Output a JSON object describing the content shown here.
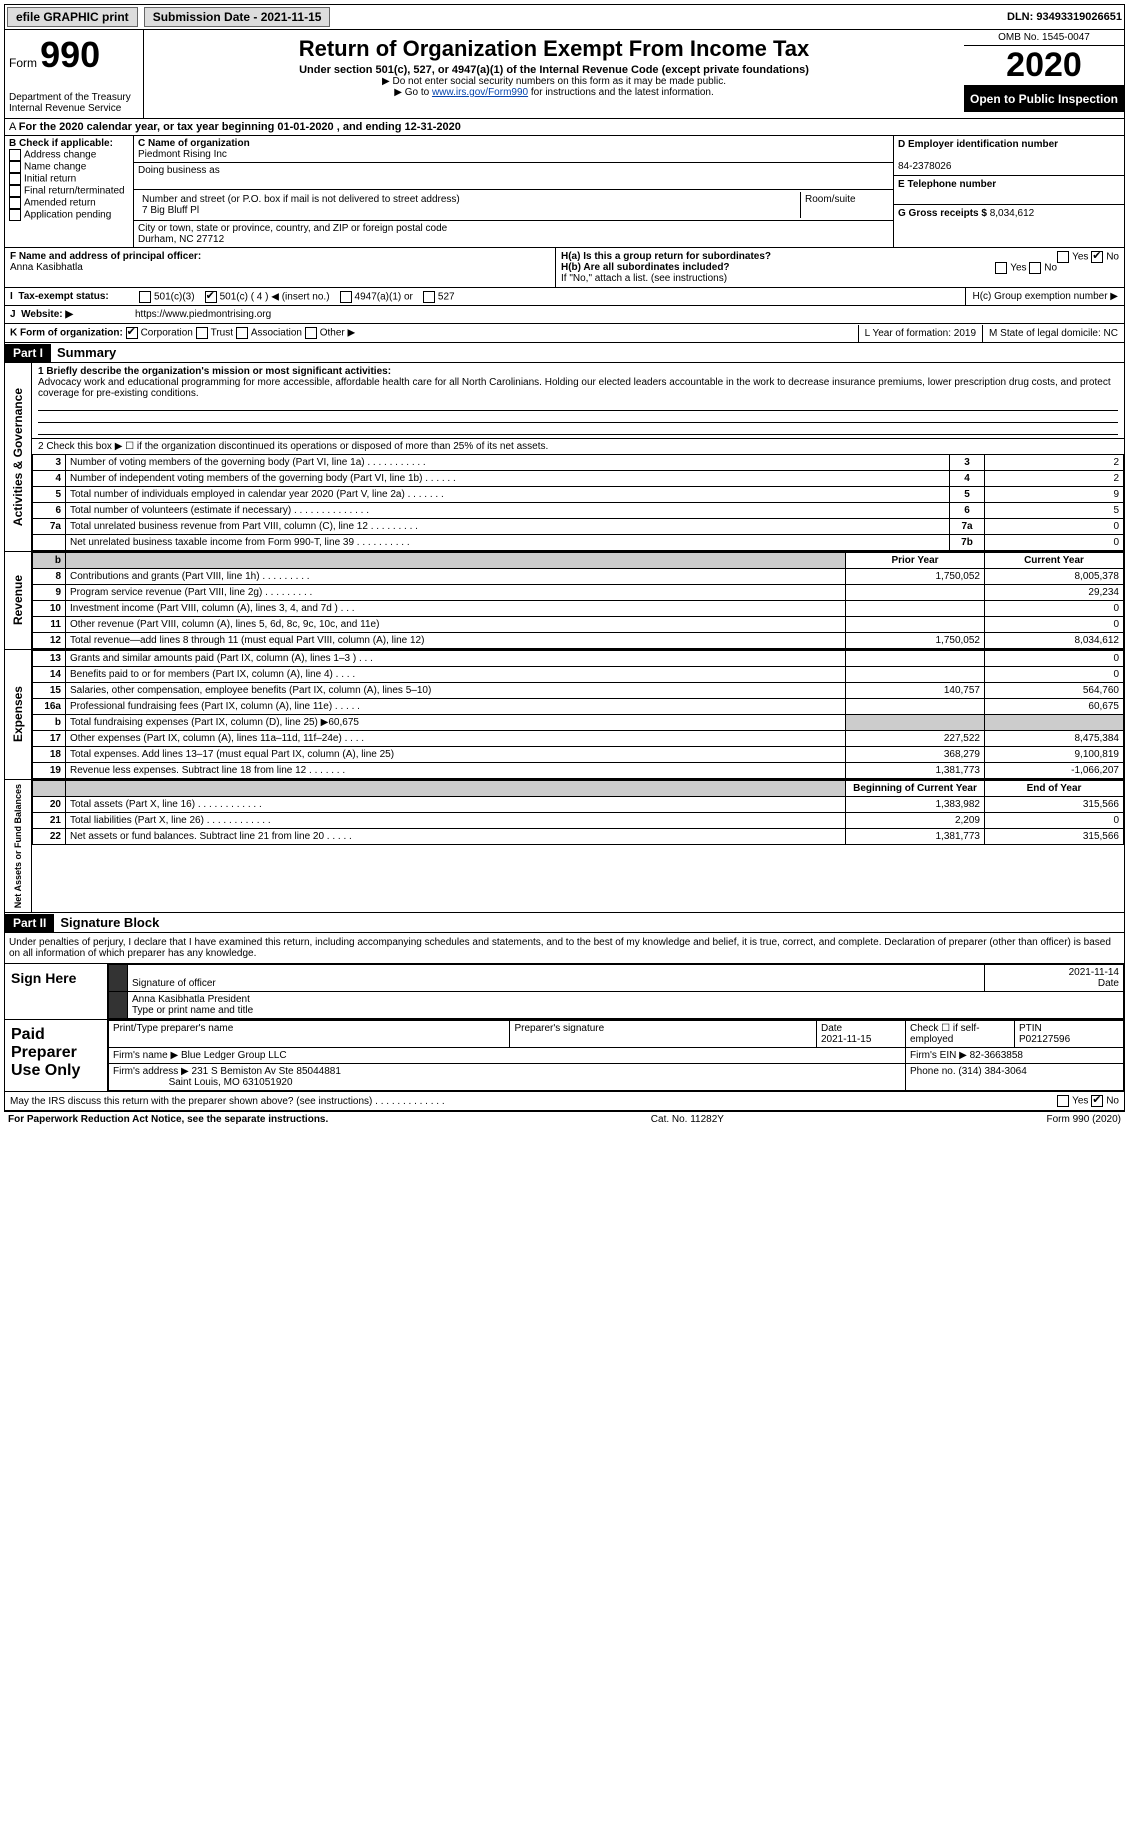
{
  "topbar": {
    "efile": "efile GRAPHIC print",
    "subdate_label": "Submission Date - 2021-11-15",
    "dln_label": "DLN: 93493319026651"
  },
  "header": {
    "form_word": "Form",
    "form_num": "990",
    "dept": "Department of the Treasury Internal Revenue Service",
    "title": "Return of Organization Exempt From Income Tax",
    "sub": "Under section 501(c), 527, or 4947(a)(1) of the Internal Revenue Code (except private foundations)",
    "ssn": "▶ Do not enter social security numbers on this form as it may be made public.",
    "goto_pre": "▶ Go to ",
    "goto_link": "www.irs.gov/Form990",
    "goto_post": " for instructions and the latest information.",
    "omb": "OMB No. 1545-0047",
    "year": "2020",
    "pubinsp": "Open to Public Inspection"
  },
  "A": "For the 2020 calendar year, or tax year beginning 01-01-2020 , and ending 12-31-2020",
  "B": {
    "title": "B Check if applicable:",
    "addr": "Address change",
    "name": "Name change",
    "init": "Initial return",
    "final": "Final return/terminated",
    "amend": "Amended return",
    "app": "Application pending"
  },
  "C": {
    "label": "C Name of organization",
    "org": "Piedmont Rising Inc",
    "dba": "Doing business as",
    "street_label": "Number and street (or P.O. box if mail is not delivered to street address)",
    "street": "7 Big Bluff Pl",
    "room": "Room/suite",
    "city_label": "City or town, state or province, country, and ZIP or foreign postal code",
    "city": "Durham, NC  27712"
  },
  "D": {
    "label": "D Employer identification number",
    "val": "84-2378026"
  },
  "E": {
    "label": "E Telephone number",
    "val": ""
  },
  "G_label": "G Gross receipts $",
  "G_val": "8,034,612",
  "F": {
    "label": "F  Name and address of principal officer:",
    "name": "Anna Kasibhatla"
  },
  "H": {
    "a": "H(a)  Is this a group return for subordinates?",
    "b": "H(b)  Are all subordinates included?",
    "b2": "If \"No,\" attach a list. (see instructions)",
    "c": "H(c)  Group exemption number ▶",
    "yes": "Yes",
    "no": "No"
  },
  "I": {
    "label": "Tax-exempt status:",
    "o1": "501(c)(3)",
    "o2": "501(c) ( 4 ) ◀ (insert no.)",
    "o3": "4947(a)(1) or",
    "o4": "527"
  },
  "J": {
    "label": "Website: ▶",
    "val": "https://www.piedmontrising.org"
  },
  "K": {
    "label": "K Form of organization:",
    "corp": "Corporation",
    "trust": "Trust",
    "assoc": "Association",
    "other": "Other ▶"
  },
  "L": "L Year of formation: 2019",
  "M": "M State of legal domicile: NC",
  "part1": {
    "hdr": "Part I",
    "title": "Summary"
  },
  "summary": {
    "l1": "1  Briefly describe the organization's mission or most significant activities:",
    "mission": "Advocacy work and educational programming for more accessible, affordable health care for all North Carolinians. Holding our elected leaders accountable in the work to decrease insurance premiums, lower prescription drug costs, and protect coverage for pre-existing conditions.",
    "l2": "2  Check this box ▶ ☐ if the organization discontinued its operations or disposed of more than 25% of its net assets.",
    "rows_gov": [
      {
        "n": "3",
        "d": "Number of voting members of the governing body (Part VI, line 1a) . . . . . . . . . . .",
        "b": "3",
        "v": "2"
      },
      {
        "n": "4",
        "d": "Number of independent voting members of the governing body (Part VI, line 1b) . . . . . .",
        "b": "4",
        "v": "2"
      },
      {
        "n": "5",
        "d": "Total number of individuals employed in calendar year 2020 (Part V, line 2a) . . . . . . .",
        "b": "5",
        "v": "9"
      },
      {
        "n": "6",
        "d": "Total number of volunteers (estimate if necessary) . . . . . . . . . . . . . .",
        "b": "6",
        "v": "5"
      },
      {
        "n": "7a",
        "d": "Total unrelated business revenue from Part VIII, column (C), line 12 . . . . . . . . .",
        "b": "7a",
        "v": "0"
      },
      {
        "n": "",
        "d": "Net unrelated business taxable income from Form 990-T, line 39 . . . . . . . . . .",
        "b": "7b",
        "v": "0"
      }
    ],
    "b_label": "b",
    "py": "Prior Year",
    "cy": "Current Year",
    "rev_rows": [
      {
        "n": "8",
        "d": "Contributions and grants (Part VIII, line 1h) . . . . . . . . .",
        "py": "1,750,052",
        "cy": "8,005,378"
      },
      {
        "n": "9",
        "d": "Program service revenue (Part VIII, line 2g) . . . . . . . . .",
        "py": "",
        "cy": "29,234"
      },
      {
        "n": "10",
        "d": "Investment income (Part VIII, column (A), lines 3, 4, and 7d ) . . .",
        "py": "",
        "cy": "0"
      },
      {
        "n": "11",
        "d": "Other revenue (Part VIII, column (A), lines 5, 6d, 8c, 9c, 10c, and 11e)",
        "py": "",
        "cy": "0"
      },
      {
        "n": "12",
        "d": "Total revenue—add lines 8 through 11 (must equal Part VIII, column (A), line 12)",
        "py": "1,750,052",
        "cy": "8,034,612"
      }
    ],
    "exp_rows": [
      {
        "n": "13",
        "d": "Grants and similar amounts paid (Part IX, column (A), lines 1–3 ) . . .",
        "py": "",
        "cy": "0"
      },
      {
        "n": "14",
        "d": "Benefits paid to or for members (Part IX, column (A), line 4) . . . .",
        "py": "",
        "cy": "0"
      },
      {
        "n": "15",
        "d": "Salaries, other compensation, employee benefits (Part IX, column (A), lines 5–10)",
        "py": "140,757",
        "cy": "564,760"
      },
      {
        "n": "16a",
        "d": "Professional fundraising fees (Part IX, column (A), line 11e) . . . . .",
        "py": "",
        "cy": "60,675"
      },
      {
        "n": "b",
        "d": "Total fundraising expenses (Part IX, column (D), line 25) ▶60,675",
        "py": "shade",
        "cy": "shade"
      },
      {
        "n": "17",
        "d": "Other expenses (Part IX, column (A), lines 11a–11d, 11f–24e) . . . .",
        "py": "227,522",
        "cy": "8,475,384"
      },
      {
        "n": "18",
        "d": "Total expenses. Add lines 13–17 (must equal Part IX, column (A), line 25)",
        "py": "368,279",
        "cy": "9,100,819"
      },
      {
        "n": "19",
        "d": "Revenue less expenses. Subtract line 18 from line 12 . . . . . . .",
        "py": "1,381,773",
        "cy": "-1,066,207"
      }
    ],
    "bcy": "Beginning of Current Year",
    "ey": "End of Year",
    "na_rows": [
      {
        "n": "20",
        "d": "Total assets (Part X, line 16) . . . . . . . . . . . .",
        "py": "1,383,982",
        "cy": "315,566"
      },
      {
        "n": "21",
        "d": "Total liabilities (Part X, line 26) . . . . . . . . . . . .",
        "py": "2,209",
        "cy": "0"
      },
      {
        "n": "22",
        "d": "Net assets or fund balances. Subtract line 21 from line 20 . . . . .",
        "py": "1,381,773",
        "cy": "315,566"
      }
    ],
    "side_gov": "Activities & Governance",
    "side_rev": "Revenue",
    "side_exp": "Expenses",
    "side_na": "Net Assets or Fund Balances"
  },
  "part2": {
    "hdr": "Part II",
    "title": "Signature Block"
  },
  "sig": {
    "decl": "Under penalties of perjury, I declare that I have examined this return, including accompanying schedules and statements, and to the best of my knowledge and belief, it is true, correct, and complete. Declaration of preparer (other than officer) is based on all information of which preparer has any knowledge.",
    "here": "Sign Here",
    "sigoff": "Signature of officer",
    "date": "Date",
    "date_val": "2021-11-14",
    "name": "Anna Kasibhatla  President",
    "typeprint": "Type or print name and title",
    "paid": "Paid Preparer Use Only",
    "pname_l": "Print/Type preparer's name",
    "psig_l": "Preparer's signature",
    "pdate_l": "Date",
    "pdate": "2021-11-15",
    "pself": "Check ☐ if self-employed",
    "ptin_l": "PTIN",
    "ptin": "P02127596",
    "firm_l": "Firm's name    ▶",
    "firm": "Blue Ledger Group LLC",
    "fein_l": "Firm's EIN ▶",
    "fein": "82-3663858",
    "faddr_l": "Firm's address ▶",
    "faddr1": "231 S Bemiston Av Ste 85044881",
    "faddr2": "Saint Louis, MO  631051920",
    "phone_l": "Phone no.",
    "phone": "(314) 384-3064",
    "discuss": "May the IRS discuss this return with the preparer shown above? (see instructions) . . . . . . . . . . . . .",
    "yes": "Yes",
    "no": "No"
  },
  "footer": {
    "pra": "For Paperwork Reduction Act Notice, see the separate instructions.",
    "cat": "Cat. No. 11282Y",
    "form": "Form 990 (2020)"
  }
}
